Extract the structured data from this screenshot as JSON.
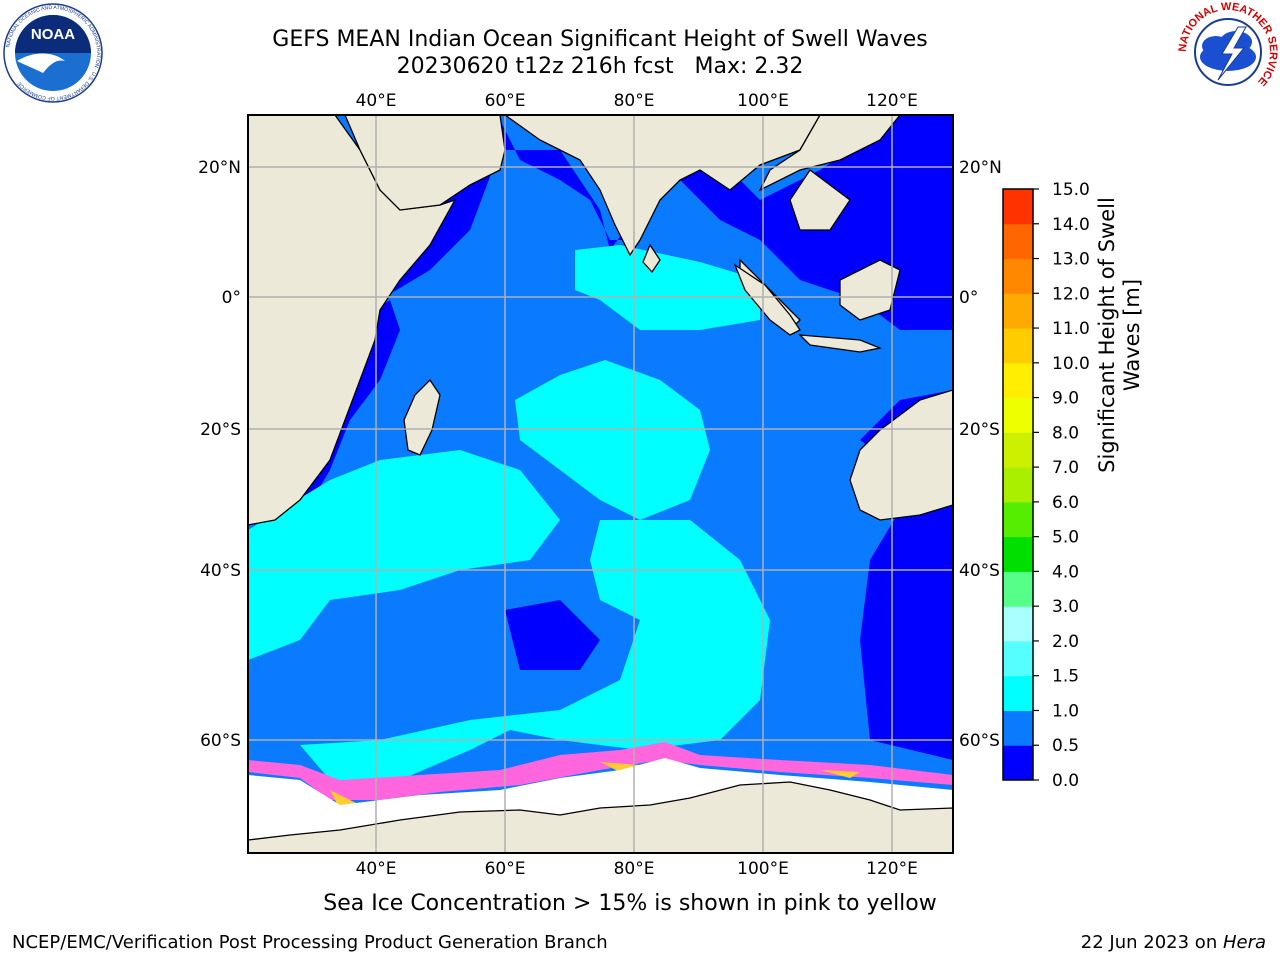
{
  "title": {
    "line1": "GEFS MEAN Indian Ocean Significant Height of Swell Waves",
    "line2": "20230620 t12z 216h fcst   Max: 2.32"
  },
  "lon_labels": [
    "40°E",
    "60°E",
    "80°E",
    "100°E",
    "120°E"
  ],
  "lat_labels": [
    "20°N",
    "0°",
    "20°S",
    "40°S",
    "60°S"
  ],
  "colorbar": {
    "label_line1": "Significant Height of Swell",
    "label_line2": "Waves [m]",
    "ticks": [
      "0.0",
      "0.5",
      "1.0",
      "1.5",
      "2.0",
      "3.0",
      "4.0",
      "5.0",
      "6.0",
      "7.0",
      "8.0",
      "9.0",
      "10.0",
      "11.0",
      "12.0",
      "13.0",
      "14.0",
      "15.0"
    ],
    "colors": [
      "#0000ff",
      "#0a7aff",
      "#00ffff",
      "#55ffff",
      "#aaffff",
      "#55ff88",
      "#00e000",
      "#55ee00",
      "#aaee00",
      "#ccf000",
      "#eeff00",
      "#ffee00",
      "#ffcc00",
      "#ffaa00",
      "#ff8800",
      "#ff6600",
      "#ff3300",
      "#ff0000"
    ]
  },
  "legend_note": "Sea Ice Concentration > 15% is shown in pink to yellow",
  "footer": {
    "left": "NCEP/EMC/Verification Post Processing Product Generation Branch",
    "right_date": "22 Jun 2023 on ",
    "right_machine": "Hera"
  },
  "logos": {
    "noaa_text": "NOAA",
    "noaa_ring_text": "NATIONAL OCEANIC AND ATMOSPHERIC ADMINISTRATION · U.S. DEPARTMENT OF COMMERCE",
    "nws_ring_text": "NATIONAL WEATHER SERVICE"
  }
}
